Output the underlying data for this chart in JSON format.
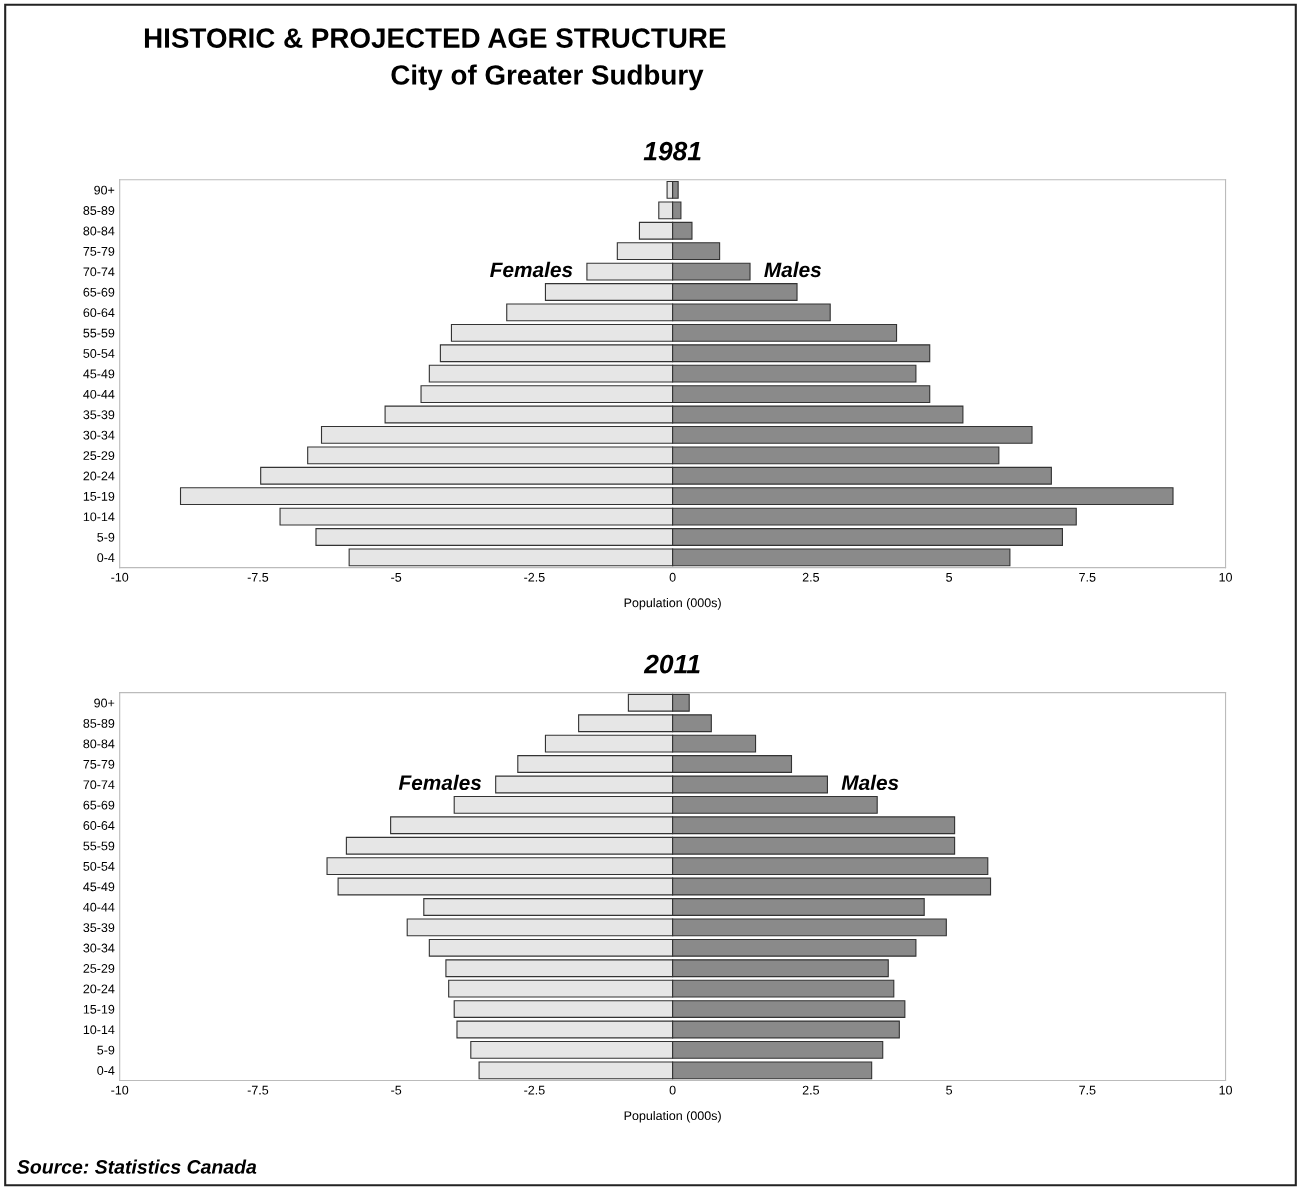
{
  "chart_data": [
    {
      "type": "bar",
      "orientation": "horizontal",
      "stacked": true,
      "title": "1981",
      "xlabel": "Population (000s)",
      "annotations": [
        "HISTORIC & PROJECTED AGE STRUCTURE",
        "City of Greater Sudbury"
      ],
      "categories": [
        "90+",
        "85-89",
        "80-84",
        "75-79",
        "70-74",
        "65-69",
        "60-64",
        "55-59",
        "50-54",
        "45-49",
        "40-44",
        "35-39",
        "30-34",
        "25-29",
        "20-24",
        "15-19",
        "10-14",
        "5-9",
        "0-4"
      ],
      "series": [
        {
          "name": "Females",
          "color": "#e6e6e6",
          "values": [
            -0.1,
            -0.25,
            -0.6,
            -1.0,
            -1.55,
            -2.3,
            -3.0,
            -4.0,
            -4.2,
            -4.4,
            -4.55,
            -5.2,
            -6.35,
            -6.6,
            -7.45,
            -8.9,
            -7.1,
            -6.45,
            -5.85
          ]
        },
        {
          "name": "Males",
          "color": "#8a8a8a",
          "values": [
            0.1,
            0.15,
            0.35,
            0.85,
            1.4,
            2.25,
            2.85,
            4.05,
            4.65,
            4.4,
            4.65,
            5.25,
            6.5,
            5.9,
            6.85,
            9.05,
            7.3,
            7.05,
            6.1
          ]
        }
      ],
      "xlim": [
        -10,
        10
      ],
      "xticks": [
        -10,
        -7.5,
        -5,
        -2.5,
        0,
        2.5,
        5,
        7.5,
        10
      ],
      "grid": false,
      "legend": false
    },
    {
      "type": "bar",
      "orientation": "horizontal",
      "stacked": true,
      "title": "2011",
      "xlabel": "Population (000s)",
      "annotations": [
        "Source: Statistics Canada"
      ],
      "categories": [
        "90+",
        "85-89",
        "80-84",
        "75-79",
        "70-74",
        "65-69",
        "60-64",
        "55-59",
        "50-54",
        "45-49",
        "40-44",
        "35-39",
        "30-34",
        "25-29",
        "20-24",
        "15-19",
        "10-14",
        "5-9",
        "0-4"
      ],
      "series": [
        {
          "name": "Females",
          "color": "#e6e6e6",
          "values": [
            -0.8,
            -1.7,
            -2.3,
            -2.8,
            -3.2,
            -3.95,
            -5.1,
            -5.9,
            -6.25,
            -6.05,
            -4.5,
            -4.8,
            -4.4,
            -4.1,
            -4.05,
            -3.95,
            -3.9,
            -3.65,
            -3.5
          ]
        },
        {
          "name": "Males",
          "color": "#8a8a8a",
          "values": [
            0.3,
            0.7,
            1.5,
            2.15,
            2.8,
            3.7,
            5.1,
            5.1,
            5.7,
            5.75,
            4.55,
            4.95,
            4.4,
            3.9,
            4.0,
            4.2,
            4.1,
            3.8,
            3.6
          ]
        }
      ],
      "xlim": [
        -10,
        10
      ],
      "xticks": [
        -10,
        -7.5,
        -5,
        -2.5,
        0,
        2.5,
        5,
        7.5,
        10
      ],
      "grid": false,
      "legend": false
    }
  ]
}
